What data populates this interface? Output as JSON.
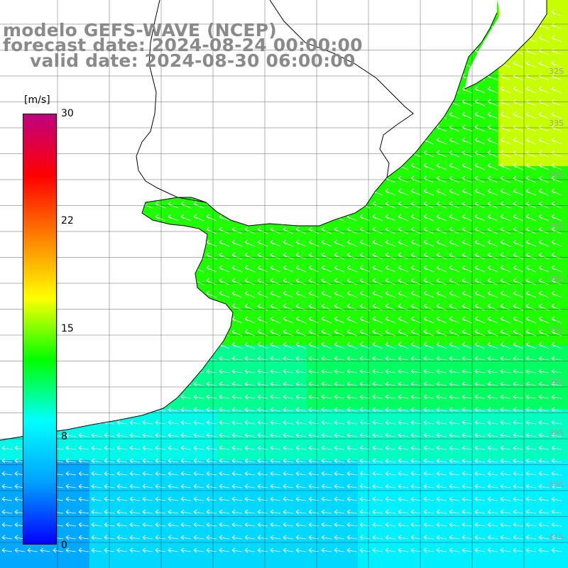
{
  "title": {
    "line1": "modelo GEFS-WAVE (NCEP)",
    "line2": "forecast date: 2024-08-24 00:00:00",
    "line3": "valid date: 2024-08-30 06:00:00"
  },
  "colorbar": {
    "unit": "[m/s]",
    "ticks": [
      "30",
      "22",
      "15",
      "8",
      "0"
    ],
    "range": [
      0,
      30
    ],
    "stops": [
      "#0000ff",
      "#00a0ff",
      "#00ffff",
      "#00ff00",
      "#ffff00",
      "#ff8000",
      "#ff0000",
      "#c00080"
    ]
  },
  "lat_labels": [
    "32S",
    "33S",
    "34S",
    "35S",
    "36S",
    "37S",
    "38S",
    "39S",
    "40S",
    "41S"
  ],
  "colors": {
    "land": "#ffffff",
    "coast": "#000000",
    "grid": "#000000",
    "arrow": "#ffffff"
  }
}
